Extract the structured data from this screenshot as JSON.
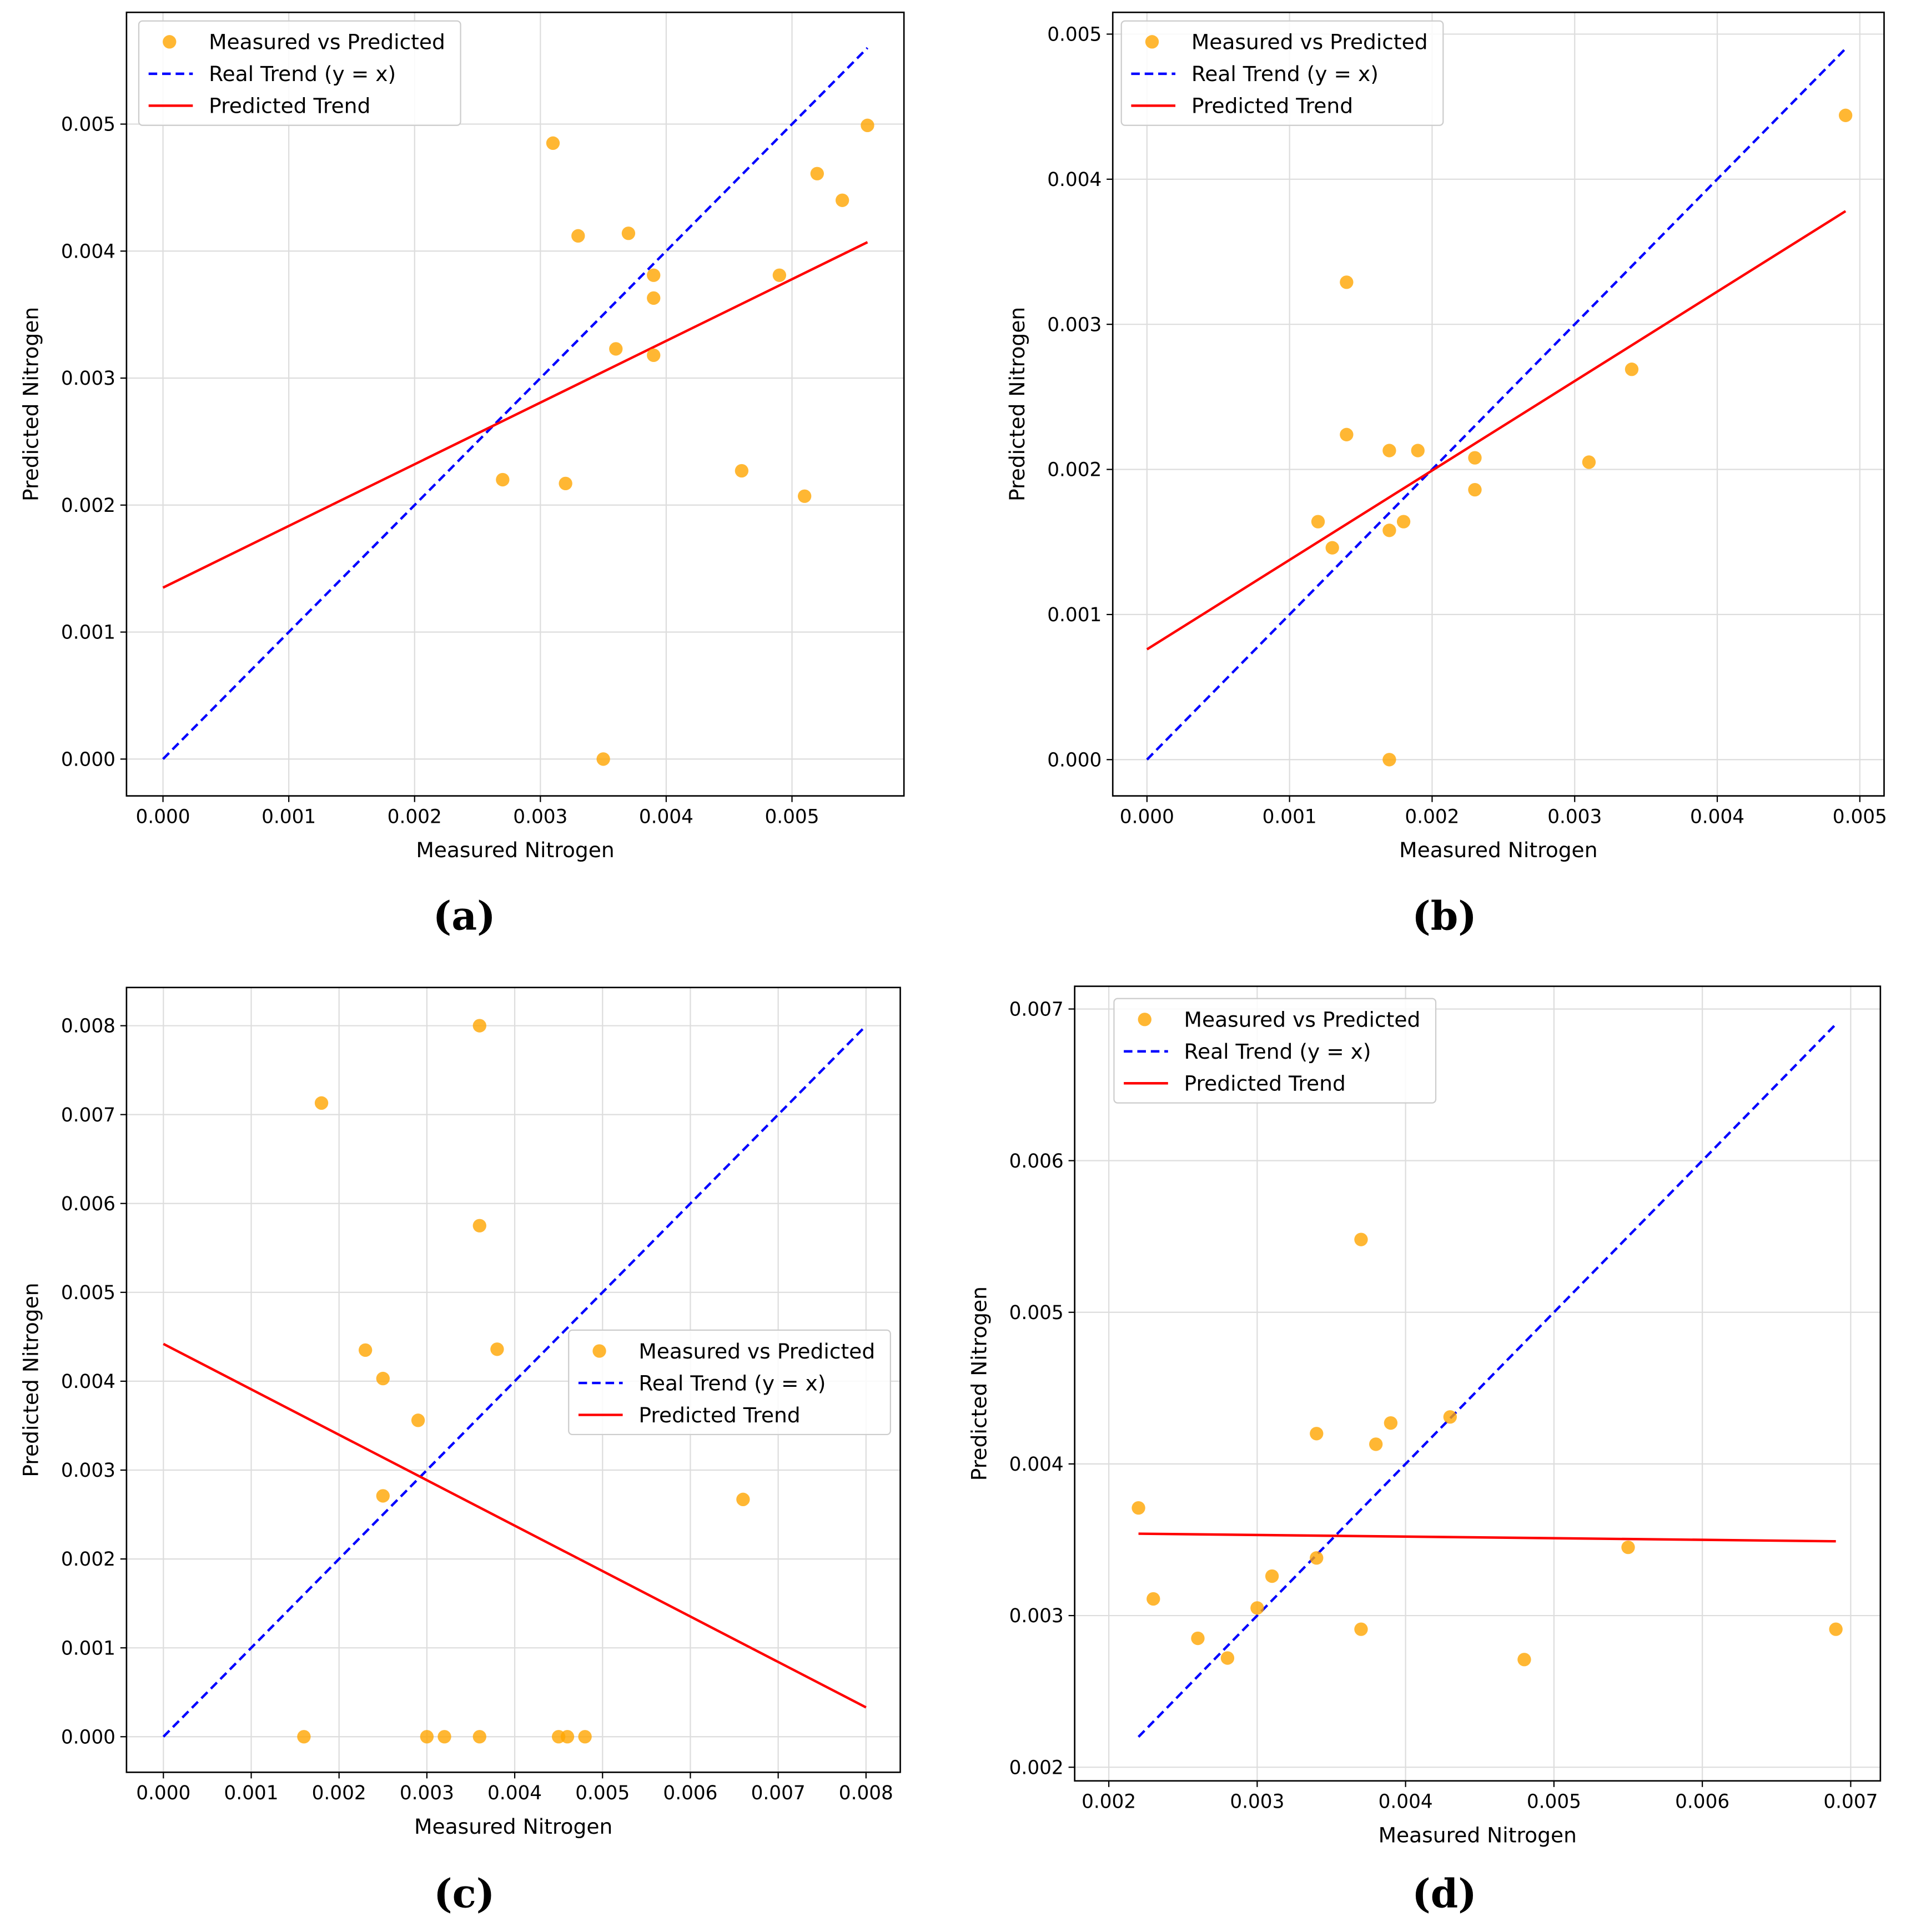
{
  "colors": {
    "points": "#FFA500",
    "real_trend": "#0000FF",
    "predicted_trend": "#FF0000",
    "grid": "#DDDDDD"
  },
  "chart_data": [
    {
      "type": "scatter",
      "panel_label": "(a)",
      "xlabel": "Measured Nitrogen",
      "ylabel": "Predicted Nitrogen",
      "xlim": [
        -0.00029,
        0.00589
      ],
      "ylim": [
        -0.00029,
        0.00588
      ],
      "xticks": [
        "0.000",
        "0.001",
        "0.002",
        "0.003",
        "0.004",
        "0.005"
      ],
      "yticks": [
        "0.000",
        "0.001",
        "0.002",
        "0.003",
        "0.004",
        "0.005"
      ],
      "grid": true,
      "legend": {
        "placement": "top-left",
        "entries": [
          "Measured vs Predicted",
          "Real Trend (y = x)",
          "Predicted Trend"
        ]
      },
      "points": [
        [
          0.0031,
          0.00485
        ],
        [
          0.0033,
          0.00412
        ],
        [
          0.0037,
          0.00414
        ],
        [
          0.0039,
          0.00381
        ],
        [
          0.0039,
          0.00363
        ],
        [
          0.0036,
          0.00323
        ],
        [
          0.0039,
          0.00318
        ],
        [
          0.0027,
          0.0022
        ],
        [
          0.0032,
          0.00217
        ],
        [
          0.0035,
          0.0
        ],
        [
          0.0046,
          0.00227
        ],
        [
          0.0049,
          0.00381
        ],
        [
          0.0051,
          0.00207
        ],
        [
          0.0052,
          0.00461
        ],
        [
          0.0054,
          0.0044
        ],
        [
          0.0056,
          0.00499
        ]
      ],
      "real_trend": [
        [
          0.0,
          0.0
        ],
        [
          0.0056,
          0.0056
        ]
      ],
      "predicted_trend": [
        [
          0.0,
          0.00135
        ],
        [
          0.0056,
          0.00407
        ]
      ]
    },
    {
      "type": "scatter",
      "panel_label": "(b)",
      "xlabel": "Measured Nitrogen",
      "ylabel": "Predicted Nitrogen",
      "xlim": [
        -0.00024,
        0.00517
      ],
      "ylim": [
        -0.00025,
        0.00515
      ],
      "xticks": [
        "0.000",
        "0.001",
        "0.002",
        "0.003",
        "0.004",
        "0.005"
      ],
      "yticks": [
        "0.000",
        "0.001",
        "0.002",
        "0.003",
        "0.004",
        "0.005"
      ],
      "grid": true,
      "legend": {
        "placement": "top-left",
        "entries": [
          "Measured vs Predicted",
          "Real Trend (y = x)",
          "Predicted Trend"
        ]
      },
      "points": [
        [
          0.0014,
          0.00329
        ],
        [
          0.0014,
          0.00224
        ],
        [
          0.0017,
          0.00213
        ],
        [
          0.0019,
          0.00213
        ],
        [
          0.0012,
          0.00164
        ],
        [
          0.0013,
          0.00146
        ],
        [
          0.0017,
          0.00158
        ],
        [
          0.0018,
          0.00164
        ],
        [
          0.0023,
          0.00208
        ],
        [
          0.0023,
          0.00186
        ],
        [
          0.0031,
          0.00205
        ],
        [
          0.0034,
          0.00269
        ],
        [
          0.0049,
          0.00444
        ],
        [
          0.0017,
          0.0
        ]
      ],
      "real_trend": [
        [
          0.0,
          0.0
        ],
        [
          0.0049,
          0.0049
        ]
      ],
      "predicted_trend": [
        [
          0.0,
          0.00076
        ],
        [
          0.0049,
          0.00378
        ]
      ]
    },
    {
      "type": "scatter",
      "panel_label": "(c)",
      "xlabel": "Measured Nitrogen",
      "ylabel": "Predicted Nitrogen",
      "xlim": [
        -0.00042,
        0.00839
      ],
      "ylim": [
        -0.0004,
        0.00843
      ],
      "xticks": [
        "0.000",
        "0.001",
        "0.002",
        "0.003",
        "0.004",
        "0.005",
        "0.006",
        "0.007",
        "0.008"
      ],
      "yticks": [
        "0.000",
        "0.001",
        "0.002",
        "0.003",
        "0.004",
        "0.005",
        "0.006",
        "0.007",
        "0.008"
      ],
      "grid": true,
      "legend": {
        "placement": "center-right",
        "entries": [
          "Measured vs Predicted",
          "Real Trend (y = x)",
          "Predicted Trend"
        ]
      },
      "points": [
        [
          0.0018,
          0.00713
        ],
        [
          0.0036,
          0.008
        ],
        [
          0.0036,
          0.00575
        ],
        [
          0.0023,
          0.00435
        ],
        [
          0.0025,
          0.00403
        ],
        [
          0.0038,
          0.00436
        ],
        [
          0.0029,
          0.00356
        ],
        [
          0.0025,
          0.00271
        ],
        [
          0.0066,
          0.00267
        ],
        [
          0.0016,
          0.0
        ],
        [
          0.003,
          0.0
        ],
        [
          0.0032,
          0.0
        ],
        [
          0.0036,
          0.0
        ],
        [
          0.0045,
          0.0
        ],
        [
          0.0046,
          0.0
        ],
        [
          0.0048,
          0.0
        ]
      ],
      "real_trend": [
        [
          0.0,
          0.0
        ],
        [
          0.008,
          0.008
        ]
      ],
      "predicted_trend": [
        [
          0.0,
          0.00442
        ],
        [
          0.008,
          0.00033
        ]
      ]
    },
    {
      "type": "scatter",
      "panel_label": "(d)",
      "xlabel": "Measured Nitrogen",
      "ylabel": "Predicted Nitrogen",
      "xlim": [
        0.00177,
        0.0072
      ],
      "ylim": [
        0.00191,
        0.00715
      ],
      "xticks": [
        "0.002",
        "0.003",
        "0.004",
        "0.005",
        "0.006",
        "0.007"
      ],
      "yticks": [
        "0.002",
        "0.003",
        "0.004",
        "0.005",
        "0.006",
        "0.007"
      ],
      "grid": true,
      "legend": {
        "placement": "top-left",
        "entries": [
          "Measured vs Predicted",
          "Real Trend (y = x)",
          "Predicted Trend"
        ]
      },
      "points": [
        [
          0.0022,
          0.00371
        ],
        [
          0.0023,
          0.00311
        ],
        [
          0.0026,
          0.00285
        ],
        [
          0.0028,
          0.00272
        ],
        [
          0.003,
          0.00305
        ],
        [
          0.0031,
          0.00326
        ],
        [
          0.0034,
          0.00338
        ],
        [
          0.0034,
          0.0042
        ],
        [
          0.0037,
          0.00548
        ],
        [
          0.0038,
          0.00413
        ],
        [
          0.0039,
          0.00427
        ],
        [
          0.0043,
          0.00431
        ],
        [
          0.0037,
          0.00291
        ],
        [
          0.0048,
          0.00271
        ],
        [
          0.0055,
          0.00345
        ],
        [
          0.0069,
          0.00291
        ]
      ],
      "real_trend": [
        [
          0.0022,
          0.0022
        ],
        [
          0.0069,
          0.0069
        ]
      ],
      "predicted_trend": [
        [
          0.0022,
          0.00354
        ],
        [
          0.0069,
          0.00349
        ]
      ]
    }
  ]
}
